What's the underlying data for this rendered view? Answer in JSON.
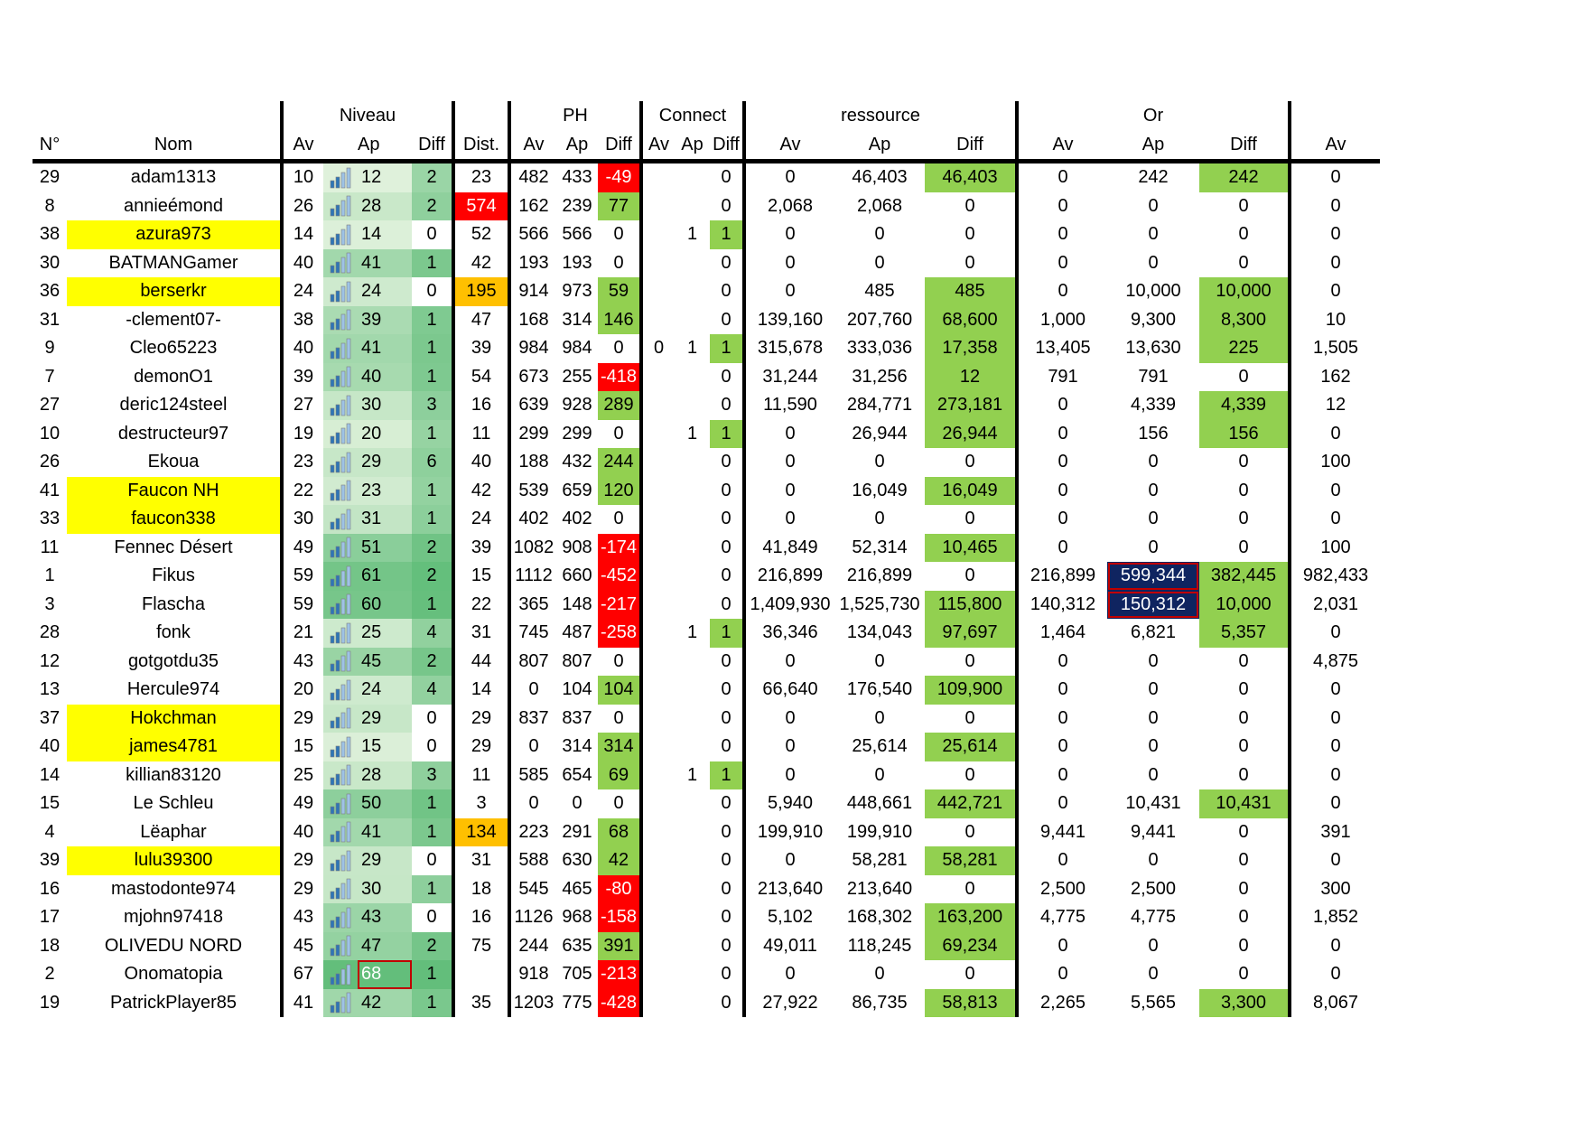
{
  "header": {
    "groups": {
      "niveau": "Niveau",
      "ph": "PH",
      "connect": "Connect",
      "ressource": "ressource",
      "or": "Or"
    },
    "cols": {
      "n": "N°",
      "nom": "Nom",
      "av": "Av",
      "ap": "Ap",
      "diff": "Diff",
      "dist": "Dist."
    }
  },
  "colors": {
    "green": "#92d050",
    "red": "#ff0000",
    "orange": "#ffc000",
    "yellow": "#ffff00",
    "navy": "#0f2460",
    "level_scale_light": "#f0f8e8",
    "level_scale_dark": "#63be7b"
  },
  "icon": "bar-chart-icon",
  "rows": [
    {
      "n": "29",
      "nom": "adam1313",
      "hl": false,
      "nav": "10",
      "nap": "12",
      "nlvl": 0.12,
      "ndiff": "2",
      "dist": "23",
      "dist_c": "",
      "pav": "482",
      "pap": "433",
      "pdiff": "-49",
      "pdiff_c": "red",
      "cav": "",
      "cap": "",
      "cdiff": "0",
      "cdiff_c": "",
      "rav": "0",
      "rap": "46,403",
      "rdiff": "46,403",
      "rdiff_c": "green",
      "oav": "0",
      "oap": "242",
      "oap_c": "",
      "odiff": "242",
      "odiff_c": "green",
      "last": "0"
    },
    {
      "n": "8",
      "nom": "annieémond",
      "hl": false,
      "nav": "26",
      "nap": "28",
      "nlvl": 0.28,
      "ndiff": "2",
      "dist": "574",
      "dist_c": "red",
      "pav": "162",
      "pap": "239",
      "pdiff": "77",
      "pdiff_c": "green",
      "cav": "",
      "cap": "",
      "cdiff": "0",
      "cdiff_c": "",
      "rav": "2,068",
      "rap": "2,068",
      "rdiff": "0",
      "rdiff_c": "",
      "oav": "0",
      "oap": "0",
      "oap_c": "",
      "odiff": "0",
      "odiff_c": "",
      "last": "0"
    },
    {
      "n": "38",
      "nom": "azura973",
      "hl": true,
      "nav": "14",
      "nap": "14",
      "nlvl": 0.14,
      "ndiff": "0",
      "dist": "52",
      "dist_c": "",
      "pav": "566",
      "pap": "566",
      "pdiff": "0",
      "pdiff_c": "",
      "cav": "",
      "cap": "1",
      "cdiff": "1",
      "cdiff_c": "green",
      "rav": "0",
      "rap": "0",
      "rdiff": "0",
      "rdiff_c": "",
      "oav": "0",
      "oap": "0",
      "oap_c": "",
      "odiff": "0",
      "odiff_c": "",
      "last": "0"
    },
    {
      "n": "30",
      "nom": "BATMANGamer",
      "hl": false,
      "nav": "40",
      "nap": "41",
      "nlvl": 0.55,
      "ndiff": "1",
      "dist": "42",
      "dist_c": "",
      "pav": "193",
      "pap": "193",
      "pdiff": "0",
      "pdiff_c": "",
      "cav": "",
      "cap": "",
      "cdiff": "0",
      "cdiff_c": "",
      "rav": "0",
      "rap": "0",
      "rdiff": "0",
      "rdiff_c": "",
      "oav": "0",
      "oap": "0",
      "oap_c": "",
      "odiff": "0",
      "odiff_c": "",
      "last": "0"
    },
    {
      "n": "36",
      "nom": "berserkr",
      "hl": true,
      "nav": "24",
      "nap": "24",
      "nlvl": 0.24,
      "ndiff": "0",
      "dist": "195",
      "dist_c": "orange",
      "pav": "914",
      "pap": "973",
      "pdiff": "59",
      "pdiff_c": "green",
      "cav": "",
      "cap": "",
      "cdiff": "0",
      "cdiff_c": "",
      "rav": "0",
      "rap": "485",
      "rdiff": "485",
      "rdiff_c": "green",
      "oav": "0",
      "oap": "10,000",
      "oap_c": "",
      "odiff": "10,000",
      "odiff_c": "green",
      "last": "0"
    },
    {
      "n": "31",
      "nom": "-clement07-",
      "hl": false,
      "nav": "38",
      "nap": "39",
      "nlvl": 0.5,
      "ndiff": "1",
      "dist": "47",
      "dist_c": "",
      "pav": "168",
      "pap": "314",
      "pdiff": "146",
      "pdiff_c": "green",
      "cav": "",
      "cap": "",
      "cdiff": "0",
      "cdiff_c": "",
      "rav": "139,160",
      "rap": "207,760",
      "rdiff": "68,600",
      "rdiff_c": "green",
      "oav": "1,000",
      "oap": "9,300",
      "oap_c": "",
      "odiff": "8,300",
      "odiff_c": "green",
      "last": "10"
    },
    {
      "n": "9",
      "nom": "Cleo65223",
      "hl": false,
      "nav": "40",
      "nap": "41",
      "nlvl": 0.55,
      "ndiff": "1",
      "dist": "39",
      "dist_c": "",
      "pav": "984",
      "pap": "984",
      "pdiff": "0",
      "pdiff_c": "",
      "cav": "0",
      "cap": "1",
      "cdiff": "1",
      "cdiff_c": "green",
      "rav": "315,678",
      "rap": "333,036",
      "rdiff": "17,358",
      "rdiff_c": "green",
      "oav": "13,405",
      "oap": "13,630",
      "oap_c": "",
      "odiff": "225",
      "odiff_c": "green",
      "last": "1,505"
    },
    {
      "n": "7",
      "nom": "demonO1",
      "hl": false,
      "nav": "39",
      "nap": "40",
      "nlvl": 0.52,
      "ndiff": "1",
      "dist": "54",
      "dist_c": "",
      "pav": "673",
      "pap": "255",
      "pdiff": "-418",
      "pdiff_c": "red",
      "cav": "",
      "cap": "",
      "cdiff": "0",
      "cdiff_c": "",
      "rav": "31,244",
      "rap": "31,256",
      "rdiff": "12",
      "rdiff_c": "green",
      "oav": "791",
      "oap": "791",
      "oap_c": "",
      "odiff": "0",
      "odiff_c": "",
      "last": "162"
    },
    {
      "n": "27",
      "nom": "deric124steel",
      "hl": false,
      "nav": "27",
      "nap": "30",
      "nlvl": 0.3,
      "ndiff": "3",
      "dist": "16",
      "dist_c": "",
      "pav": "639",
      "pap": "928",
      "pdiff": "289",
      "pdiff_c": "green",
      "cav": "",
      "cap": "",
      "cdiff": "0",
      "cdiff_c": "",
      "rav": "11,590",
      "rap": "284,771",
      "rdiff": "273,181",
      "rdiff_c": "green",
      "oav": "0",
      "oap": "4,339",
      "oap_c": "",
      "odiff": "4,339",
      "odiff_c": "green",
      "last": "12"
    },
    {
      "n": "10",
      "nom": "destructeur97",
      "hl": false,
      "nav": "19",
      "nap": "20",
      "nlvl": 0.18,
      "ndiff": "1",
      "dist": "11",
      "dist_c": "",
      "pav": "299",
      "pap": "299",
      "pdiff": "0",
      "pdiff_c": "",
      "cav": "",
      "cap": "1",
      "cdiff": "1",
      "cdiff_c": "green",
      "rav": "0",
      "rap": "26,944",
      "rdiff": "26,944",
      "rdiff_c": "green",
      "oav": "0",
      "oap": "156",
      "oap_c": "",
      "odiff": "156",
      "odiff_c": "green",
      "last": "0"
    },
    {
      "n": "26",
      "nom": "Ekoua",
      "hl": false,
      "nav": "23",
      "nap": "29",
      "nlvl": 0.29,
      "ndiff": "6",
      "dist": "40",
      "dist_c": "",
      "pav": "188",
      "pap": "432",
      "pdiff": "244",
      "pdiff_c": "green",
      "cav": "",
      "cap": "",
      "cdiff": "0",
      "cdiff_c": "",
      "rav": "0",
      "rap": "0",
      "rdiff": "0",
      "rdiff_c": "",
      "oav": "0",
      "oap": "0",
      "oap_c": "",
      "odiff": "0",
      "odiff_c": "",
      "last": "100"
    },
    {
      "n": "41",
      "nom": "Faucon NH",
      "hl": true,
      "nav": "22",
      "nap": "23",
      "nlvl": 0.22,
      "ndiff": "1",
      "dist": "42",
      "dist_c": "",
      "pav": "539",
      "pap": "659",
      "pdiff": "120",
      "pdiff_c": "green",
      "cav": "",
      "cap": "",
      "cdiff": "0",
      "cdiff_c": "",
      "rav": "0",
      "rap": "16,049",
      "rdiff": "16,049",
      "rdiff_c": "green",
      "oav": "0",
      "oap": "0",
      "oap_c": "",
      "odiff": "0",
      "odiff_c": "",
      "last": "0"
    },
    {
      "n": "33",
      "nom": "faucon338",
      "hl": true,
      "nav": "30",
      "nap": "31",
      "nlvl": 0.32,
      "ndiff": "1",
      "dist": "24",
      "dist_c": "",
      "pav": "402",
      "pap": "402",
      "pdiff": "0",
      "pdiff_c": "",
      "cav": "",
      "cap": "",
      "cdiff": "0",
      "cdiff_c": "",
      "rav": "0",
      "rap": "0",
      "rdiff": "0",
      "rdiff_c": "",
      "oav": "0",
      "oap": "0",
      "oap_c": "",
      "odiff": "0",
      "odiff_c": "",
      "last": "0"
    },
    {
      "n": "11",
      "nom": "Fennec Désert",
      "hl": false,
      "nav": "49",
      "nap": "51",
      "nlvl": 0.72,
      "ndiff": "2",
      "dist": "39",
      "dist_c": "",
      "pav": "1082",
      "pap": "908",
      "pdiff": "-174",
      "pdiff_c": "red",
      "cav": "",
      "cap": "",
      "cdiff": "0",
      "cdiff_c": "",
      "rav": "41,849",
      "rap": "52,314",
      "rdiff": "10,465",
      "rdiff_c": "green",
      "oav": "0",
      "oap": "0",
      "oap_c": "",
      "odiff": "0",
      "odiff_c": "",
      "last": "100"
    },
    {
      "n": "1",
      "nom": "Fikus",
      "hl": false,
      "nav": "59",
      "nap": "61",
      "nlvl": 0.88,
      "ndiff": "2",
      "dist": "15",
      "dist_c": "",
      "pav": "1112",
      "pap": "660",
      "pdiff": "-452",
      "pdiff_c": "red",
      "cav": "",
      "cap": "",
      "cdiff": "0",
      "cdiff_c": "",
      "rav": "216,899",
      "rap": "216,899",
      "rdiff": "0",
      "rdiff_c": "",
      "oav": "216,899",
      "oap": "599,344",
      "oap_c": "navy",
      "odiff": "382,445",
      "odiff_c": "green",
      "last": "982,433"
    },
    {
      "n": "3",
      "nom": "Flascha",
      "hl": false,
      "nav": "59",
      "nap": "60",
      "nlvl": 0.86,
      "ndiff": "1",
      "dist": "22",
      "dist_c": "",
      "pav": "365",
      "pap": "148",
      "pdiff": "-217",
      "pdiff_c": "red",
      "cav": "",
      "cap": "",
      "cdiff": "0",
      "cdiff_c": "",
      "rav": "1,409,930",
      "rap": "1,525,730",
      "rdiff": "115,800",
      "rdiff_c": "green",
      "oav": "140,312",
      "oap": "150,312",
      "oap_c": "navy",
      "odiff": "10,000",
      "odiff_c": "green",
      "last": "2,031"
    },
    {
      "n": "28",
      "nom": "fonk",
      "hl": false,
      "nav": "21",
      "nap": "25",
      "nlvl": 0.25,
      "ndiff": "4",
      "dist": "31",
      "dist_c": "",
      "pav": "745",
      "pap": "487",
      "pdiff": "-258",
      "pdiff_c": "red",
      "cav": "",
      "cap": "1",
      "cdiff": "1",
      "cdiff_c": "green",
      "rav": "36,346",
      "rap": "134,043",
      "rdiff": "97,697",
      "rdiff_c": "green",
      "oav": "1,464",
      "oap": "6,821",
      "oap_c": "",
      "odiff": "5,357",
      "odiff_c": "green",
      "last": "0"
    },
    {
      "n": "12",
      "nom": "gotgotdu35",
      "hl": false,
      "nav": "43",
      "nap": "45",
      "nlvl": 0.62,
      "ndiff": "2",
      "dist": "44",
      "dist_c": "",
      "pav": "807",
      "pap": "807",
      "pdiff": "0",
      "pdiff_c": "",
      "cav": "",
      "cap": "",
      "cdiff": "0",
      "cdiff_c": "",
      "rav": "0",
      "rap": "0",
      "rdiff": "0",
      "rdiff_c": "",
      "oav": "0",
      "oap": "0",
      "oap_c": "",
      "odiff": "0",
      "odiff_c": "",
      "last": "4,875"
    },
    {
      "n": "13",
      "nom": "Hercule974",
      "hl": false,
      "nav": "20",
      "nap": "24",
      "nlvl": 0.24,
      "ndiff": "4",
      "dist": "14",
      "dist_c": "",
      "pav": "0",
      "pap": "104",
      "pdiff": "104",
      "pdiff_c": "green",
      "cav": "",
      "cap": "",
      "cdiff": "0",
      "cdiff_c": "",
      "rav": "66,640",
      "rap": "176,540",
      "rdiff": "109,900",
      "rdiff_c": "green",
      "oav": "0",
      "oap": "0",
      "oap_c": "",
      "odiff": "0",
      "odiff_c": "",
      "last": "0"
    },
    {
      "n": "37",
      "nom": "Hokchman",
      "hl": true,
      "nav": "29",
      "nap": "29",
      "nlvl": 0.29,
      "ndiff": "0",
      "dist": "29",
      "dist_c": "",
      "pav": "837",
      "pap": "837",
      "pdiff": "0",
      "pdiff_c": "",
      "cav": "",
      "cap": "",
      "cdiff": "0",
      "cdiff_c": "",
      "rav": "0",
      "rap": "0",
      "rdiff": "0",
      "rdiff_c": "",
      "oav": "0",
      "oap": "0",
      "oap_c": "",
      "odiff": "0",
      "odiff_c": "",
      "last": "0"
    },
    {
      "n": "40",
      "nom": "james4781",
      "hl": true,
      "nav": "15",
      "nap": "15",
      "nlvl": 0.15,
      "ndiff": "0",
      "dist": "29",
      "dist_c": "",
      "pav": "0",
      "pap": "314",
      "pdiff": "314",
      "pdiff_c": "green",
      "cav": "",
      "cap": "",
      "cdiff": "0",
      "cdiff_c": "",
      "rav": "0",
      "rap": "25,614",
      "rdiff": "25,614",
      "rdiff_c": "green",
      "oav": "0",
      "oap": "0",
      "oap_c": "",
      "odiff": "0",
      "odiff_c": "",
      "last": "0"
    },
    {
      "n": "14",
      "nom": "killian83120",
      "hl": false,
      "nav": "25",
      "nap": "28",
      "nlvl": 0.28,
      "ndiff": "3",
      "dist": "11",
      "dist_c": "",
      "pav": "585",
      "pap": "654",
      "pdiff": "69",
      "pdiff_c": "green",
      "cav": "",
      "cap": "1",
      "cdiff": "1",
      "cdiff_c": "green",
      "rav": "0",
      "rap": "0",
      "rdiff": "0",
      "rdiff_c": "",
      "oav": "0",
      "oap": "0",
      "oap_c": "",
      "odiff": "0",
      "odiff_c": "",
      "last": "0"
    },
    {
      "n": "15",
      "nom": "Le Schleu",
      "hl": false,
      "nav": "49",
      "nap": "50",
      "nlvl": 0.7,
      "ndiff": "1",
      "dist": "3",
      "dist_c": "",
      "pav": "0",
      "pap": "0",
      "pdiff": "0",
      "pdiff_c": "",
      "cav": "",
      "cap": "",
      "cdiff": "0",
      "cdiff_c": "",
      "rav": "5,940",
      "rap": "448,661",
      "rdiff": "442,721",
      "rdiff_c": "green",
      "oav": "0",
      "oap": "10,431",
      "oap_c": "",
      "odiff": "10,431",
      "odiff_c": "green",
      "last": "0"
    },
    {
      "n": "4",
      "nom": "Lëaphar",
      "hl": false,
      "nav": "40",
      "nap": "41",
      "nlvl": 0.55,
      "ndiff": "1",
      "dist": "134",
      "dist_c": "orange",
      "pav": "223",
      "pap": "291",
      "pdiff": "68",
      "pdiff_c": "green",
      "cav": "",
      "cap": "",
      "cdiff": "0",
      "cdiff_c": "",
      "rav": "199,910",
      "rap": "199,910",
      "rdiff": "0",
      "rdiff_c": "",
      "oav": "9,441",
      "oap": "9,441",
      "oap_c": "",
      "odiff": "0",
      "odiff_c": "",
      "last": "391"
    },
    {
      "n": "39",
      "nom": "lulu39300",
      "hl": true,
      "nav": "29",
      "nap": "29",
      "nlvl": 0.29,
      "ndiff": "0",
      "dist": "31",
      "dist_c": "",
      "pav": "588",
      "pap": "630",
      "pdiff": "42",
      "pdiff_c": "green",
      "cav": "",
      "cap": "",
      "cdiff": "0",
      "cdiff_c": "",
      "rav": "0",
      "rap": "58,281",
      "rdiff": "58,281",
      "rdiff_c": "green",
      "oav": "0",
      "oap": "0",
      "oap_c": "",
      "odiff": "0",
      "odiff_c": "",
      "last": "0"
    },
    {
      "n": "16",
      "nom": "mastodonte974",
      "hl": false,
      "nav": "29",
      "nap": "30",
      "nlvl": 0.3,
      "ndiff": "1",
      "dist": "18",
      "dist_c": "",
      "pav": "545",
      "pap": "465",
      "pdiff": "-80",
      "pdiff_c": "red",
      "cav": "",
      "cap": "",
      "cdiff": "0",
      "cdiff_c": "",
      "rav": "213,640",
      "rap": "213,640",
      "rdiff": "0",
      "rdiff_c": "",
      "oav": "2,500",
      "oap": "2,500",
      "oap_c": "",
      "odiff": "0",
      "odiff_c": "",
      "last": "300"
    },
    {
      "n": "17",
      "nom": "mjohn97418",
      "hl": false,
      "nav": "43",
      "nap": "43",
      "nlvl": 0.6,
      "ndiff": "0",
      "dist": "16",
      "dist_c": "",
      "pav": "1126",
      "pap": "968",
      "pdiff": "-158",
      "pdiff_c": "red",
      "cav": "",
      "cap": "",
      "cdiff": "0",
      "cdiff_c": "",
      "rav": "5,102",
      "rap": "168,302",
      "rdiff": "163,200",
      "rdiff_c": "green",
      "oav": "4,775",
      "oap": "4,775",
      "oap_c": "",
      "odiff": "0",
      "odiff_c": "",
      "last": "1,852"
    },
    {
      "n": "18",
      "nom": "OLIVEDU NORD",
      "hl": false,
      "nav": "45",
      "nap": "47",
      "nlvl": 0.65,
      "ndiff": "2",
      "dist": "75",
      "dist_c": "",
      "pav": "244",
      "pap": "635",
      "pdiff": "391",
      "pdiff_c": "green",
      "cav": "",
      "cap": "",
      "cdiff": "0",
      "cdiff_c": "",
      "rav": "49,011",
      "rap": "118,245",
      "rdiff": "69,234",
      "rdiff_c": "green",
      "oav": "0",
      "oap": "0",
      "oap_c": "",
      "odiff": "0",
      "odiff_c": "",
      "last": "0"
    },
    {
      "n": "2",
      "nom": "Onomatopia",
      "hl": false,
      "nav": "67",
      "nap": "68",
      "nlvl": 1.0,
      "ndiff": "1",
      "dist": "",
      "dist_c": "",
      "pav": "918",
      "pap": "705",
      "pdiff": "-213",
      "pdiff_c": "red",
      "cav": "",
      "cap": "",
      "cdiff": "0",
      "cdiff_c": "",
      "rav": "0",
      "rap": "0",
      "rdiff": "0",
      "rdiff_c": "",
      "oav": "0",
      "oap": "0",
      "oap_c": "",
      "odiff": "0",
      "odiff_c": "",
      "last": "0"
    },
    {
      "n": "19",
      "nom": "PatrickPlayer85",
      "hl": false,
      "nav": "41",
      "nap": "42",
      "nlvl": 0.57,
      "ndiff": "1",
      "dist": "35",
      "dist_c": "",
      "pav": "1203",
      "pap": "775",
      "pdiff": "-428",
      "pdiff_c": "red",
      "cav": "",
      "cap": "",
      "cdiff": "0",
      "cdiff_c": "",
      "rav": "27,922",
      "rap": "86,735",
      "rdiff": "58,813",
      "rdiff_c": "green",
      "oav": "2,265",
      "oap": "5,565",
      "oap_c": "",
      "odiff": "3,300",
      "odiff_c": "green",
      "last": "8,067"
    }
  ]
}
